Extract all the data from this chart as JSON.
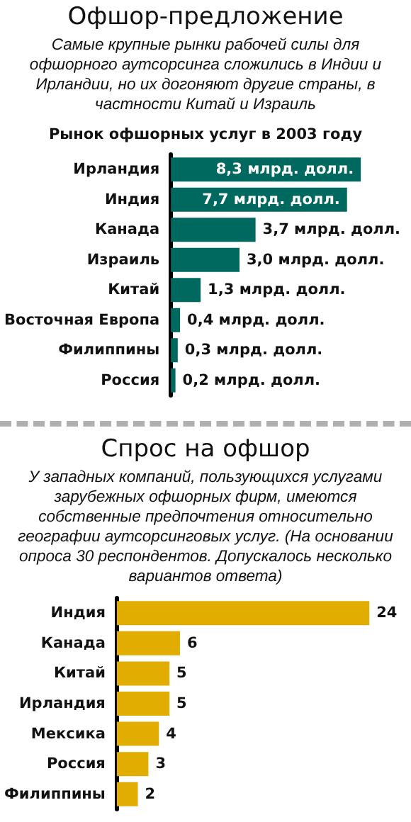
{
  "chart_data": [
    {
      "type": "bar",
      "orientation": "horizontal",
      "title": "Офшор-предложение",
      "subtitle": "Самые крупные рынки рабочей силы для офшорного аутсорсинга сложились в Индии и Ирландии, но их догоняют другие страны, в частности Китай и Израиль",
      "annotations": [
        "Рынок офшорных услуг в 2003 году"
      ],
      "categories": [
        "Ирландия",
        "Индия",
        "Канада",
        "Израиль",
        "Китай",
        "Восточная Европа",
        "Филиппины",
        "Россия"
      ],
      "values": [
        8.3,
        7.7,
        3.7,
        3.0,
        1.3,
        0.4,
        0.3,
        0.2
      ],
      "value_labels": [
        "8,3 млрд. долл.",
        "7,7 млрд. долл.",
        "3,7 млрд. долл.",
        "3,0 млрд. долл.",
        "1,3 млрд. долл.",
        "0,4 млрд. долл.",
        "0,3 млрд. долл.",
        "0,2 млрд. долл."
      ],
      "color": "#00695f"
    },
    {
      "type": "bar",
      "orientation": "horizontal",
      "title": "Спрос на офшор",
      "subtitle": "У западных компаний, пользующихся услугами зарубежных офшорных фирм, имеются собственные предпочтения относительно географии аутсорсинговых услуг. (На основании опроса 30 респондентов. Допускалось несколько вариантов ответа)",
      "categories": [
        "Индия",
        "Канада",
        "Китай",
        "Ирландия",
        "Мексика",
        "Россия",
        "Филиппины"
      ],
      "values": [
        24,
        6,
        5,
        5,
        4,
        3,
        2
      ],
      "data_labels": true,
      "color": "#e0ad00"
    }
  ]
}
